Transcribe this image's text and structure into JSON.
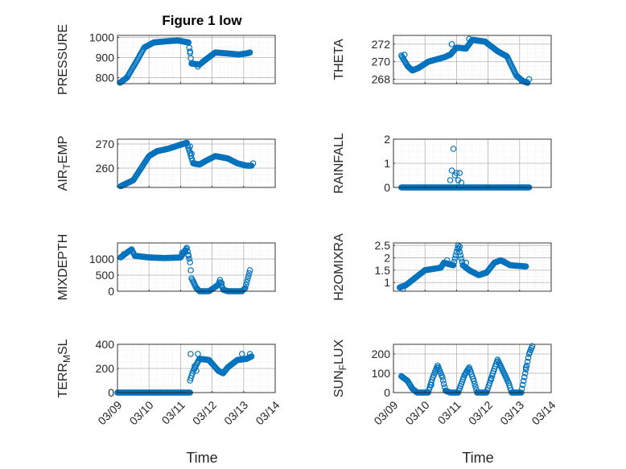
{
  "figure": {
    "title": "Figure 1 low",
    "xlabel": "Time"
  },
  "colors": {
    "marker": "#0072bd",
    "axis": "#262626",
    "grid": "#b3b3b3",
    "minor_grid": "#dcdcdc",
    "background": "#ffffff"
  },
  "chart_data": [
    {
      "type": "scatter",
      "ylabel_parts": [
        "PRESSURE"
      ],
      "ylim": [
        770,
        1010
      ],
      "yticks": [
        800,
        900,
        1000
      ],
      "xlim": [
        0,
        5
      ],
      "xticks": [
        0,
        1,
        2,
        3,
        4,
        5
      ],
      "xticklabels": [],
      "grid": true,
      "curve": [
        [
          0.08,
          775
        ],
        [
          0.3,
          800
        ],
        [
          0.6,
          880
        ],
        [
          0.85,
          950
        ],
        [
          1.15,
          975
        ],
        [
          1.5,
          980
        ],
        [
          1.9,
          985
        ],
        [
          2.25,
          975
        ],
        [
          2.35,
          870
        ],
        [
          2.6,
          865
        ],
        [
          2.8,
          890
        ],
        [
          3.1,
          925
        ],
        [
          3.5,
          920
        ],
        [
          3.85,
          915
        ],
        [
          4.08,
          920
        ],
        [
          4.2,
          925
        ]
      ],
      "outliers": [
        [
          2.3,
          930
        ],
        [
          2.4,
          870
        ],
        [
          2.55,
          855
        ]
      ],
      "title": "Figure 1 low"
    },
    {
      "type": "scatter",
      "ylabel_parts": [
        "THETA"
      ],
      "ylim": [
        267.5,
        273
      ],
      "yticks": [
        268,
        270,
        272
      ],
      "xlim": [
        0,
        5
      ],
      "xticks": [
        0,
        1,
        2,
        3,
        4,
        5
      ],
      "xticklabels": [],
      "grid": true,
      "curve": [
        [
          0.25,
          270.7
        ],
        [
          0.45,
          269.5
        ],
        [
          0.6,
          269.0
        ],
        [
          0.8,
          269.3
        ],
        [
          1.1,
          270.0
        ],
        [
          1.6,
          270.5
        ],
        [
          1.8,
          270.8
        ],
        [
          2.0,
          271.6
        ],
        [
          2.3,
          271.5
        ],
        [
          2.5,
          272.5
        ],
        [
          2.9,
          272.3
        ],
        [
          3.3,
          271.2
        ],
        [
          3.6,
          270.6
        ],
        [
          3.75,
          269.5
        ],
        [
          3.9,
          268.4
        ],
        [
          4.1,
          267.8
        ],
        [
          4.25,
          267.6
        ]
      ],
      "outliers": [
        [
          2.4,
          272.6
        ],
        [
          4.3,
          268.0
        ],
        [
          0.35,
          270.8
        ],
        [
          1.85,
          272.0
        ]
      ]
    },
    {
      "type": "scatter",
      "ylabel_parts": [
        "AIR",
        "T",
        "EMP"
      ],
      "ylim": [
        252,
        272
      ],
      "yticks": [
        260,
        270
      ],
      "xlim": [
        0,
        5
      ],
      "xticks": [
        0,
        1,
        2,
        3,
        4,
        5
      ],
      "xticklabels": [],
      "grid": true,
      "curve": [
        [
          0.1,
          252.5
        ],
        [
          0.5,
          255
        ],
        [
          0.75,
          260
        ],
        [
          1.0,
          265
        ],
        [
          1.25,
          267
        ],
        [
          1.6,
          268
        ],
        [
          1.95,
          269.5
        ],
        [
          2.2,
          270.5
        ],
        [
          2.4,
          262
        ],
        [
          2.6,
          261.5
        ],
        [
          2.8,
          263
        ],
        [
          3.1,
          265
        ],
        [
          3.5,
          264
        ],
        [
          3.8,
          262
        ],
        [
          4.1,
          261
        ],
        [
          4.25,
          261
        ]
      ],
      "outliers": [
        [
          2.3,
          269
        ],
        [
          2.35,
          266
        ],
        [
          4.3,
          262
        ]
      ]
    },
    {
      "type": "scatter",
      "ylabel_parts": [
        "RAINFALL"
      ],
      "ylim": [
        0,
        2
      ],
      "yticks": [
        0,
        1,
        2
      ],
      "xlim": [
        0,
        5
      ],
      "xticks": [
        0,
        1,
        2,
        3,
        4,
        5
      ],
      "xticklabels": [],
      "grid": true,
      "curve": [
        [
          0.25,
          0
        ],
        [
          1.75,
          0
        ],
        [
          2.45,
          0
        ],
        [
          4.3,
          0
        ]
      ],
      "outliers": [
        [
          1.8,
          0.3
        ],
        [
          1.85,
          0.7
        ],
        [
          1.9,
          1.6
        ],
        [
          1.95,
          0.5
        ],
        [
          2.0,
          0.6
        ],
        [
          2.05,
          0.3
        ],
        [
          2.1,
          0.6
        ],
        [
          2.15,
          0.2
        ]
      ]
    },
    {
      "type": "scatter",
      "ylabel_parts": [
        "MIXDEPTH"
      ],
      "ylim": [
        0,
        1500
      ],
      "yticks": [
        0,
        500,
        1000
      ],
      "xlim": [
        0,
        5
      ],
      "xticks": [
        0,
        1,
        2,
        3,
        4,
        5
      ],
      "xticklabels": [],
      "grid": true,
      "curve": [
        [
          0.1,
          1050
        ],
        [
          0.3,
          1200
        ],
        [
          0.45,
          1300
        ],
        [
          0.55,
          1100
        ],
        [
          1.0,
          1050
        ],
        [
          1.5,
          1030
        ],
        [
          2.0,
          1050
        ],
        [
          2.2,
          1350
        ],
        [
          2.3,
          900
        ],
        [
          2.35,
          400
        ],
        [
          2.5,
          100
        ],
        [
          2.6,
          0
        ],
        [
          2.9,
          0
        ],
        [
          3.2,
          200
        ],
        [
          3.25,
          350
        ],
        [
          3.35,
          50
        ],
        [
          3.5,
          0
        ],
        [
          3.95,
          0
        ],
        [
          4.05,
          100
        ],
        [
          4.2,
          650
        ]
      ],
      "outliers": [
        [
          0.2,
          1150
        ],
        [
          2.05,
          1200
        ],
        [
          2.15,
          1250
        ],
        [
          2.25,
          1100
        ],
        [
          2.4,
          300
        ],
        [
          3.3,
          250
        ]
      ]
    },
    {
      "type": "scatter",
      "ylabel_parts": [
        "H2OMIXRA"
      ],
      "ylim": [
        0.65,
        2.6
      ],
      "yticks": [
        1,
        1.5,
        2,
        2.5
      ],
      "xlim": [
        0,
        5
      ],
      "xticks": [
        0,
        1,
        2,
        3,
        4,
        5
      ],
      "xticklabels": [],
      "grid": true,
      "curve": [
        [
          0.2,
          0.8
        ],
        [
          0.4,
          0.9
        ],
        [
          0.8,
          1.3
        ],
        [
          1.0,
          1.5
        ],
        [
          1.5,
          1.6
        ],
        [
          1.6,
          1.8
        ],
        [
          1.9,
          1.7
        ],
        [
          2.05,
          2.5
        ],
        [
          2.2,
          1.7
        ],
        [
          2.4,
          1.5
        ],
        [
          2.7,
          1.3
        ],
        [
          2.95,
          1.4
        ],
        [
          3.2,
          1.8
        ],
        [
          3.4,
          1.9
        ],
        [
          3.7,
          1.7
        ],
        [
          4.2,
          1.65
        ]
      ],
      "outliers": [
        [
          0.3,
          0.75
        ],
        [
          1.7,
          1.9
        ],
        [
          2.1,
          2.45
        ],
        [
          2.3,
          1.8
        ],
        [
          3.5,
          1.85
        ]
      ]
    },
    {
      "type": "scatter",
      "ylabel_parts": [
        "TERR",
        "M",
        "SL"
      ],
      "ylim": [
        0,
        400
      ],
      "yticks": [
        0,
        200,
        400
      ],
      "xlim": [
        0,
        5
      ],
      "xticks": [
        0,
        1,
        2,
        3,
        4,
        5
      ],
      "xticklabels": [
        "03/09",
        "03/10",
        "03/11",
        "03/12",
        "03/13",
        "03/14"
      ],
      "grid": true,
      "curve": [
        [
          0.0,
          0
        ],
        [
          2.3,
          0
        ],
        [
          2.3,
          100
        ],
        [
          2.4,
          180
        ],
        [
          2.6,
          280
        ],
        [
          2.9,
          270
        ],
        [
          3.2,
          180
        ],
        [
          3.35,
          160
        ],
        [
          3.5,
          210
        ],
        [
          3.8,
          270
        ],
        [
          4.1,
          280
        ],
        [
          4.25,
          300
        ]
      ],
      "outliers": [
        [
          2.32,
          320
        ],
        [
          2.45,
          220
        ],
        [
          2.55,
          320
        ],
        [
          2.5,
          180
        ],
        [
          3.95,
          320
        ],
        [
          4.2,
          320
        ]
      ]
    },
    {
      "type": "scatter",
      "ylabel_parts": [
        "SUN",
        "F",
        "LUX"
      ],
      "ylim": [
        0,
        250
      ],
      "yticks": [
        0,
        100,
        200
      ],
      "xlim": [
        0,
        5
      ],
      "xticks": [
        0,
        1,
        2,
        3,
        4,
        5
      ],
      "xticklabels": [
        "03/09",
        "03/10",
        "03/11",
        "03/12",
        "03/13",
        "03/14"
      ],
      "grid": true,
      "curve": [
        [
          0.25,
          85
        ],
        [
          0.45,
          60
        ],
        [
          0.6,
          20
        ],
        [
          0.75,
          0
        ],
        [
          1.1,
          0
        ],
        [
          1.25,
          80
        ],
        [
          1.4,
          140
        ],
        [
          1.55,
          80
        ],
        [
          1.65,
          10
        ],
        [
          1.8,
          0
        ],
        [
          2.05,
          0
        ],
        [
          2.25,
          90
        ],
        [
          2.4,
          130
        ],
        [
          2.55,
          60
        ],
        [
          2.65,
          0
        ],
        [
          2.95,
          0
        ],
        [
          3.15,
          100
        ],
        [
          3.3,
          170
        ],
        [
          3.45,
          120
        ],
        [
          3.65,
          50
        ],
        [
          3.75,
          0
        ],
        [
          4.05,
          0
        ],
        [
          4.15,
          80
        ],
        [
          4.3,
          200
        ],
        [
          4.4,
          240
        ]
      ],
      "outliers": [
        [
          1.2,
          40
        ],
        [
          3.1,
          70
        ],
        [
          4.2,
          130
        ]
      ]
    }
  ]
}
